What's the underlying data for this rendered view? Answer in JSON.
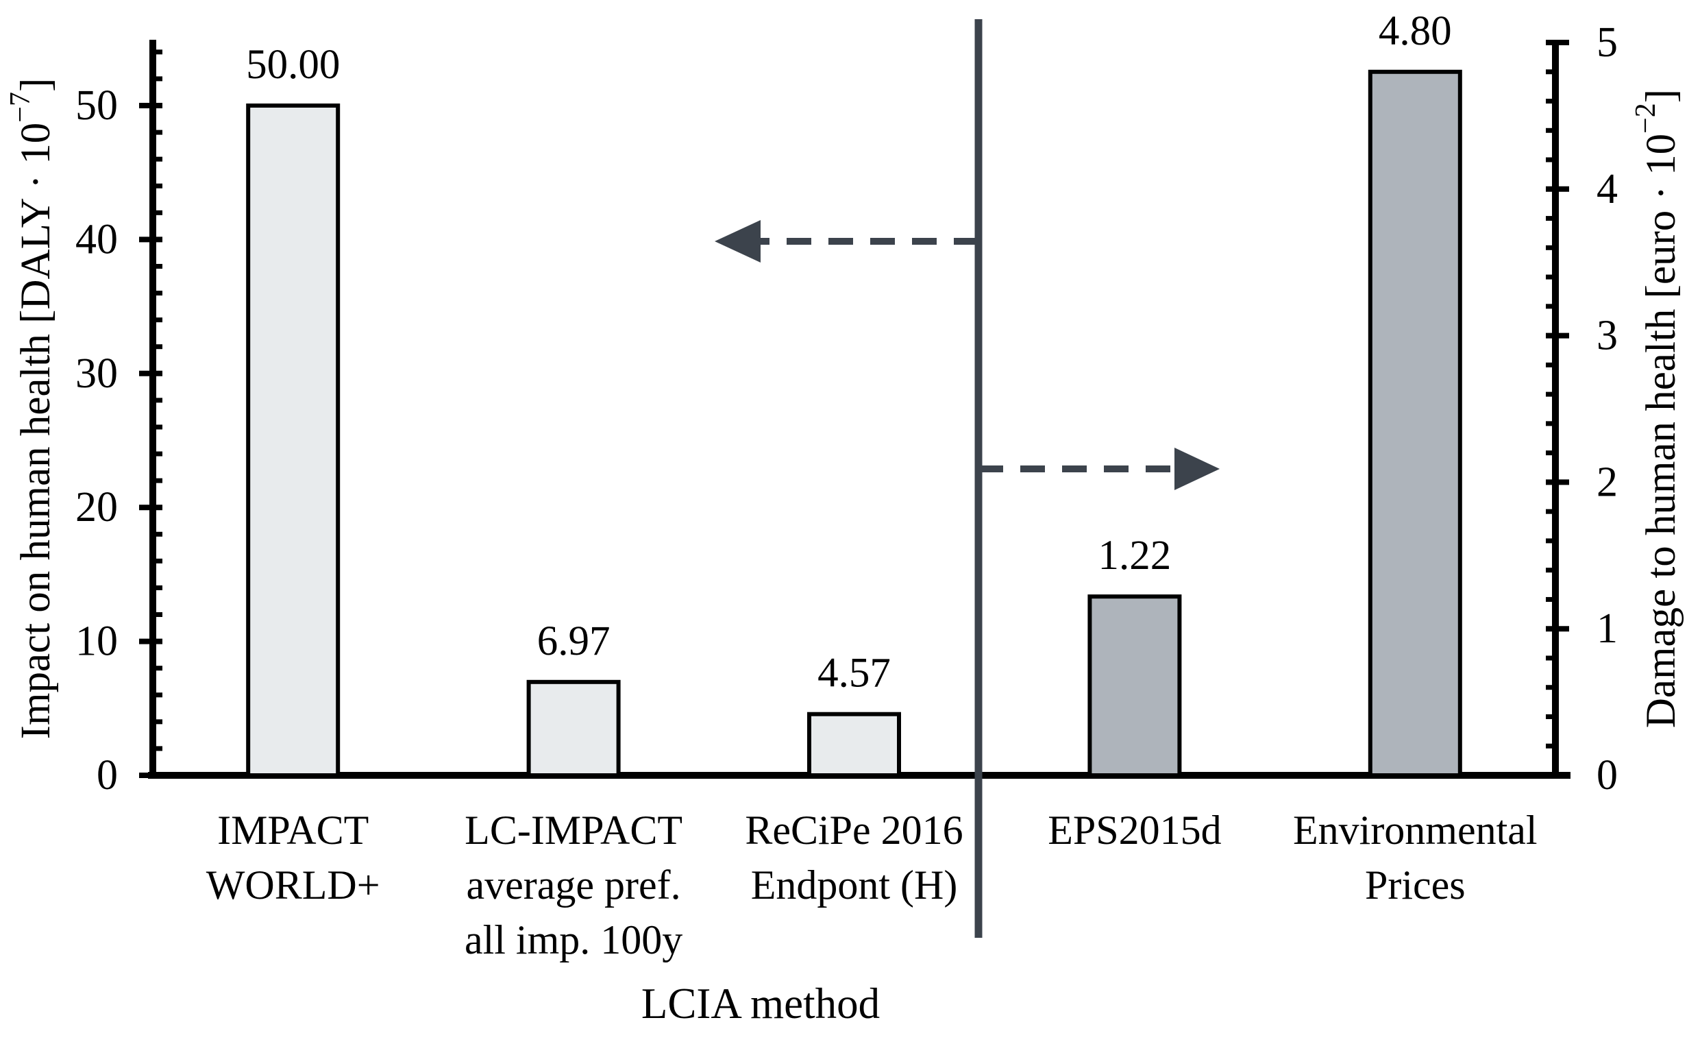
{
  "chart_data": {
    "type": "bar",
    "title": "",
    "xlabel": "LCIA method",
    "left_axis": {
      "title_prefix": "Impact on human health [DALY · 10",
      "title_sup": "−7",
      "title_suffix": "]",
      "min": 0,
      "max": 50,
      "major_step": 10,
      "minor_step": 2,
      "minor_max": 54,
      "major_ticks": [
        0,
        10,
        20,
        30,
        40,
        50
      ]
    },
    "right_axis": {
      "title_prefix": "Damage to human health [euro · 10",
      "title_sup": "−2",
      "title_suffix": "]",
      "min": 0,
      "max": 5,
      "major_step": 1,
      "minor_step": 0.2,
      "minor_max": 4.8,
      "major_ticks": [
        0,
        1,
        2,
        3,
        4,
        5
      ]
    },
    "bars": [
      {
        "category": "IMPACT WORLD+",
        "category_lines": [
          "IMPACT",
          "WORLD+"
        ],
        "value": 50.0,
        "label": "50.00",
        "axis": "left"
      },
      {
        "category": "LC-IMPACT average pref. all imp. 100y",
        "category_lines": [
          "LC-IMPACT",
          "average pref.",
          "all imp.  100y"
        ],
        "value": 6.97,
        "label": "6.97",
        "axis": "left"
      },
      {
        "category": "ReCiPe 2016 Endpont (H)",
        "category_lines": [
          "ReCiPe 2016",
          "Endpont (H)"
        ],
        "value": 4.57,
        "label": "4.57",
        "axis": "left"
      },
      {
        "category": "EPS2015d",
        "category_lines": [
          "EPS2015d"
        ],
        "value": 1.22,
        "label": "1.22",
        "axis": "right"
      },
      {
        "category": "Environmental Prices",
        "category_lines": [
          "Environmental",
          "Prices"
        ],
        "value": 4.8,
        "label": "4.80",
        "axis": "right"
      }
    ],
    "style": {
      "fill_left_group": "#e8ebed",
      "fill_right_group": "#aeb4bb",
      "bar_border_color": "#000000",
      "axis_color": "#000000",
      "divider_color": "#3c434c"
    },
    "annotations": [
      {
        "type": "divider-line",
        "meaning": "separates DALY-based methods from monetary methods"
      },
      {
        "type": "dashed-arrow",
        "direction": "left",
        "meaning": "left group read on left axis"
      },
      {
        "type": "dashed-arrow",
        "direction": "right",
        "meaning": "right group read on right axis"
      }
    ],
    "legend": null,
    "grid": false
  }
}
